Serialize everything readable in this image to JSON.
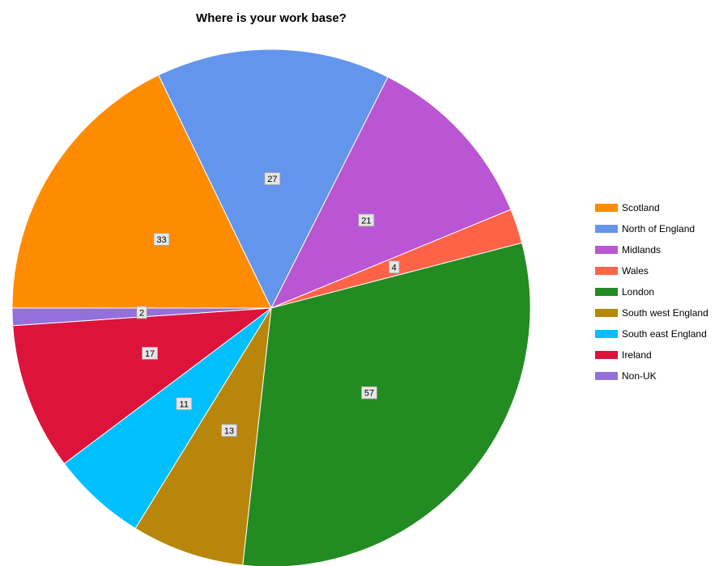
{
  "chart_data": {
    "type": "pie",
    "title": "Where is your work base?",
    "categories": [
      "Scotland",
      "North of England",
      "Midlands",
      "Wales",
      "London",
      "South west England",
      "South east England",
      "Ireland",
      "Non-UK"
    ],
    "values": [
      33,
      27,
      21,
      4,
      57,
      13,
      11,
      17,
      2
    ],
    "colors": [
      "#ff8c00",
      "#6495ed",
      "#ba55d3",
      "#ff6347",
      "#228b22",
      "#b8860b",
      "#00bfff",
      "#dc143c",
      "#9370db"
    ],
    "data_labels": [
      "33",
      "27",
      "21",
      "4",
      "57",
      "13",
      "11",
      "17",
      "2"
    ],
    "legend_position": "right",
    "start_angle_deg": 180,
    "direction": "clockwise",
    "grid": false
  }
}
